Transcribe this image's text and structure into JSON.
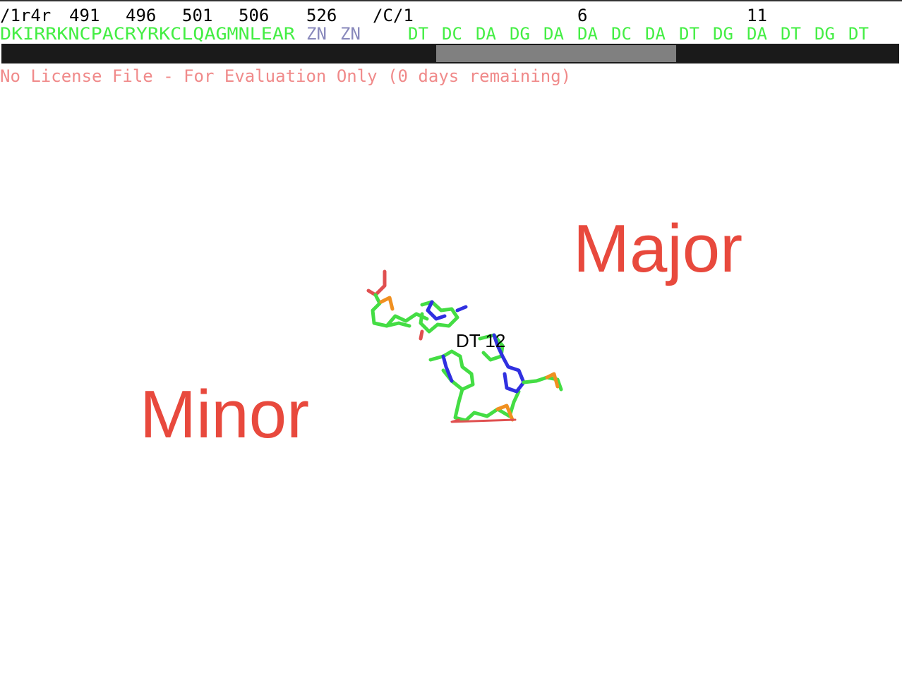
{
  "sequence_viewer": {
    "header_labels": [
      "/1r4r",
      "491",
      "496",
      "501",
      "506",
      "526",
      "/C/1",
      "6",
      "11"
    ],
    "protein_sequence": "DKIRRKNCPACRYRKCLQAGMNLEAR",
    "ligands": [
      "ZN",
      "ZN"
    ],
    "dna_residues": [
      "DT",
      "DC",
      "DA",
      "DG",
      "DA",
      "DA",
      "DC",
      "DA",
      "DT",
      "DG",
      "DA",
      "DT",
      "DG",
      "DT"
    ]
  },
  "license_message": "No License File - For Evaluation Only (0 days remaining)",
  "viewport": {
    "labels": [
      "Major",
      "Minor"
    ],
    "atom_label": "DT 12"
  }
}
